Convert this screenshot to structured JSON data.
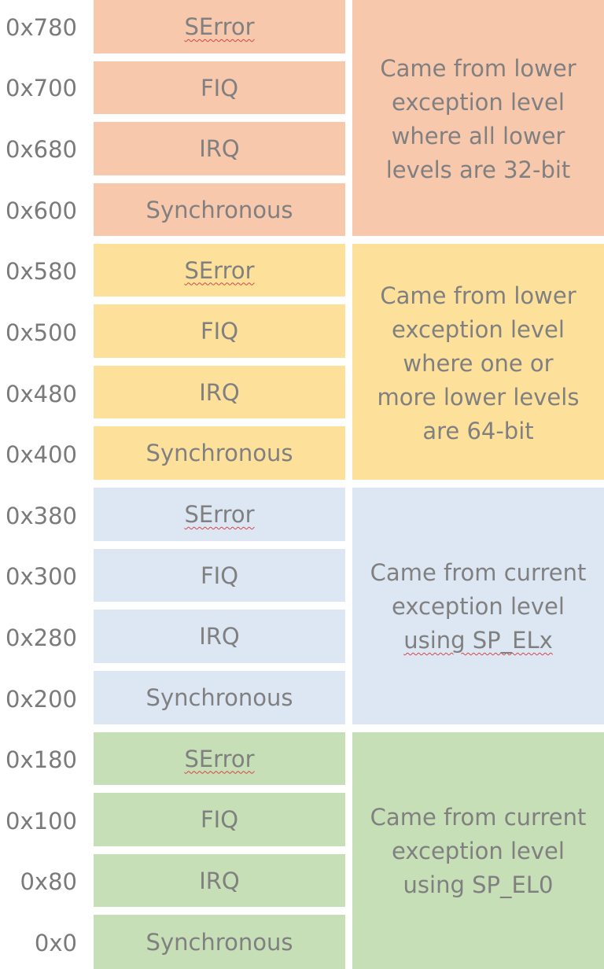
{
  "colors": {
    "orange": "#f8c8ad",
    "yellow": "#fde19b",
    "blue": "#dde7f3",
    "green": "#c6dfb6"
  },
  "groups": [
    {
      "id": "lower-aarch32",
      "color": "orange",
      "entries": [
        {
          "offset": "0x780",
          "label": "SError"
        },
        {
          "offset": "0x700",
          "label": "FIQ"
        },
        {
          "offset": "0x680",
          "label": "IRQ"
        },
        {
          "offset": "0x600",
          "label": "Synchronous"
        }
      ],
      "description": [
        "Came from lower",
        "exception level",
        "where all lower",
        "levels are 32-bit"
      ]
    },
    {
      "id": "lower-aarch64",
      "color": "yellow",
      "entries": [
        {
          "offset": "0x580",
          "label": "SError"
        },
        {
          "offset": "0x500",
          "label": "FIQ"
        },
        {
          "offset": "0x480",
          "label": "IRQ"
        },
        {
          "offset": "0x400",
          "label": "Synchronous"
        }
      ],
      "description": [
        "Came from lower",
        "exception level",
        "where one or",
        "more lower levels",
        "are 64-bit"
      ]
    },
    {
      "id": "current-spx",
      "color": "blue",
      "entries": [
        {
          "offset": "0x380",
          "label": "SError"
        },
        {
          "offset": "0x300",
          "label": "FIQ"
        },
        {
          "offset": "0x280",
          "label": "IRQ"
        },
        {
          "offset": "0x200",
          "label": "Synchronous"
        }
      ],
      "description": [
        "Came from current",
        "exception level",
        "using SP_ELx"
      ]
    },
    {
      "id": "current-sp0",
      "color": "green",
      "entries": [
        {
          "offset": "0x180",
          "label": "SError"
        },
        {
          "offset": "0x100",
          "label": "FIQ"
        },
        {
          "offset": "0x80",
          "label": "IRQ"
        },
        {
          "offset": "0x0",
          "label": "Synchronous"
        }
      ],
      "description": [
        "Came from current",
        "exception level",
        "using SP_EL0"
      ]
    }
  ]
}
